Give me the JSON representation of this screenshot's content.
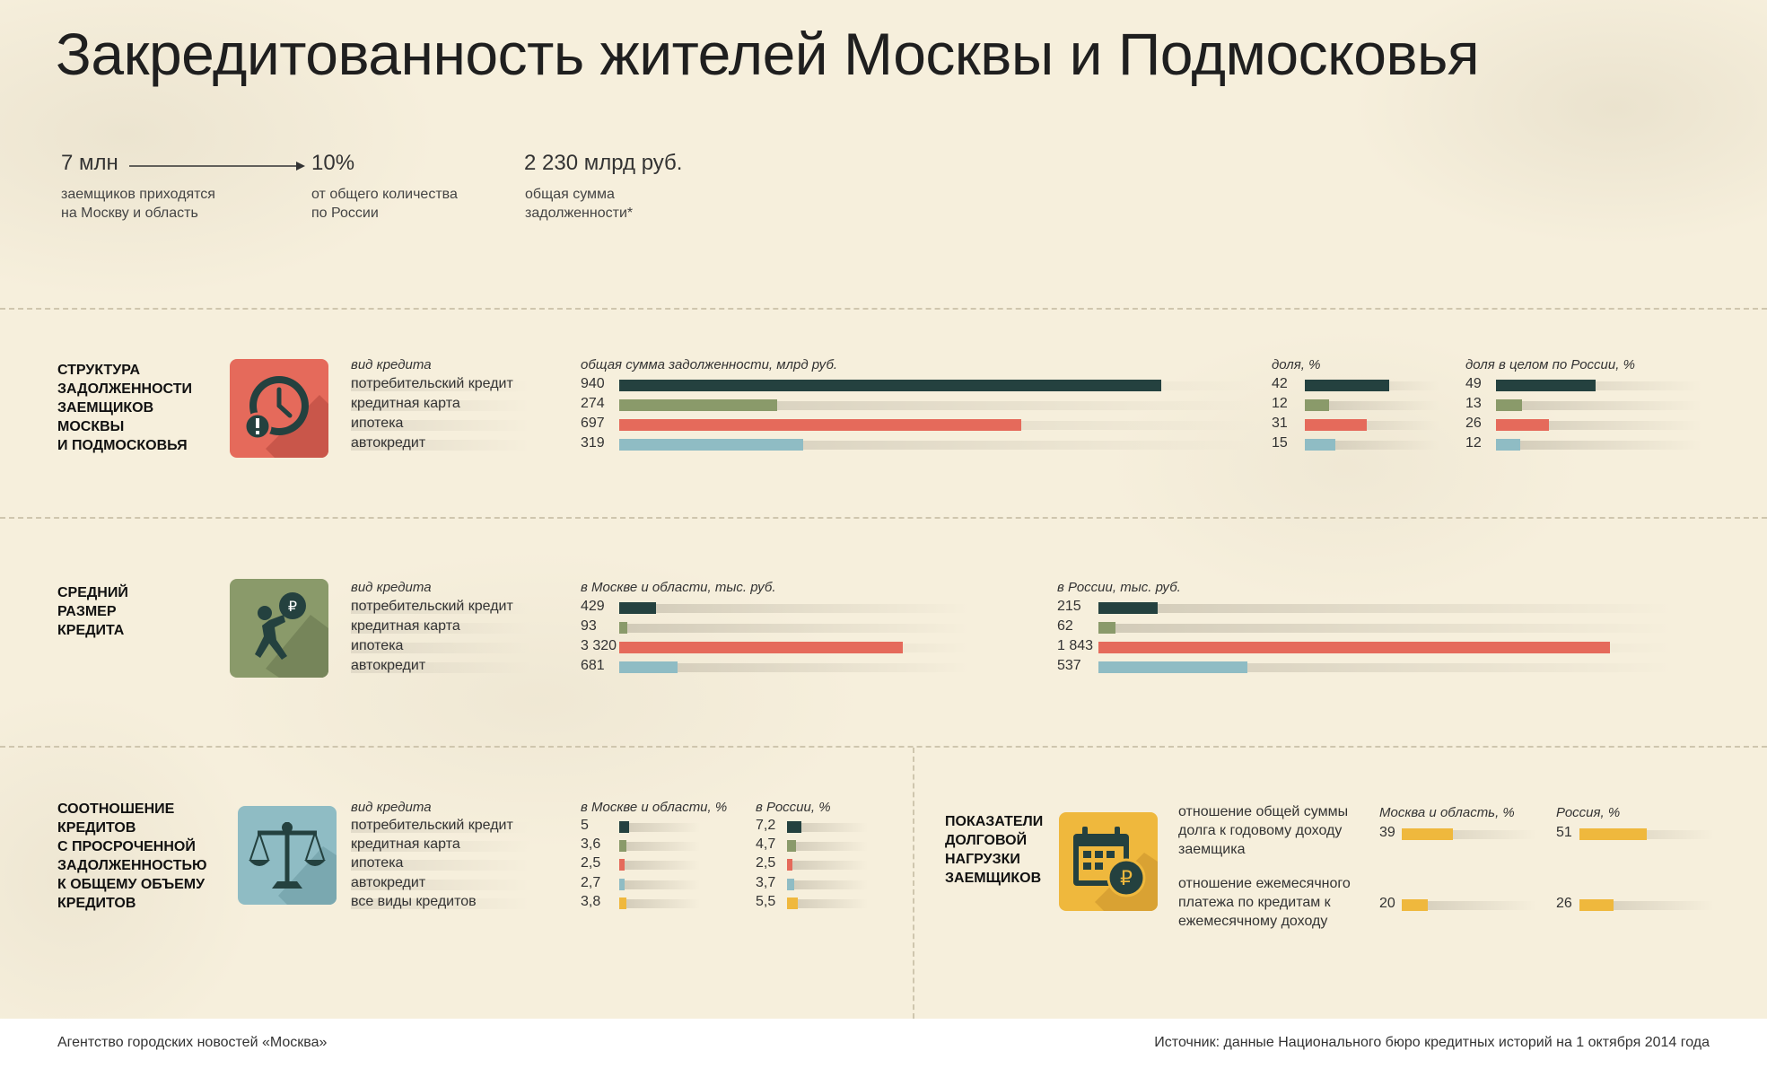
{
  "title": "Закредитованность жителей Москвы и Подмосковья",
  "colors": {
    "consumer": "#24413f",
    "card": "#8a9a6a",
    "mortgage": "#e56a5b",
    "auto": "#8fbcc4",
    "load": "#efb83d"
  },
  "summary": {
    "borrowers_value": "7 млн",
    "borrowers_desc": [
      "заемщиков приходятся",
      "на Москву и область"
    ],
    "share_value": "10%",
    "share_desc": [
      "от общего количества",
      "по России"
    ],
    "debt_value": "2 230 млрд руб.",
    "debt_desc": [
      "общая сумма",
      "задолженности*"
    ]
  },
  "sections": {
    "structure_title": [
      "СТРУКТУРА",
      "ЗАДОЛЖЕННОСТИ",
      "ЗАЕМЩИКОВ",
      "МОСКВЫ",
      "И ПОДМОСКОВЬЯ"
    ],
    "avg_title": [
      "СРЕДНИЙ",
      "РАЗМЕР",
      "КРЕДИТА"
    ],
    "overdue_title": [
      "СООТНОШЕНИЕ",
      "КРЕДИТОВ",
      "С ПРОСРОЧЕННОЙ",
      "ЗАДОЛЖЕННОСТЬЮ",
      "К ОБЩЕМУ ОБЪЕМУ",
      "КРЕДИТОВ"
    ],
    "load_title": [
      "ПОКАЗАТЕЛИ",
      "ДОЛГОВОЙ",
      "НАГРУЗКИ",
      "ЗАЕМЩИКОВ"
    ]
  },
  "icons": {
    "structure": "clock-warning-icon",
    "avg": "person-carrying-ruble-icon",
    "overdue": "scales-icon",
    "load": "calendar-ruble-icon"
  },
  "chart_data": [
    {
      "type": "bar",
      "id": "structure",
      "categories": [
        "потребительский кредит",
        "кредитная карта",
        "ипотека",
        "автокредит"
      ],
      "category_header": "вид кредита",
      "series": [
        {
          "name": "общая сумма задолженности, млрд руб.",
          "values": [
            940,
            274,
            697,
            319
          ],
          "labels": [
            "940",
            "274",
            "697",
            "319"
          ]
        },
        {
          "name": "доля, %",
          "values": [
            42,
            12,
            31,
            15
          ],
          "labels": [
            "42",
            "12",
            "31",
            "15"
          ]
        },
        {
          "name": "доля в целом по России, %",
          "values": [
            49,
            13,
            26,
            12
          ],
          "labels": [
            "49",
            "13",
            "26",
            "12"
          ]
        }
      ]
    },
    {
      "type": "bar",
      "id": "avg",
      "categories": [
        "потребительский кредит",
        "кредитная карта",
        "ипотека",
        "автокредит"
      ],
      "category_header": "вид кредита",
      "series": [
        {
          "name": "в Москве и области, тыс. руб.",
          "values": [
            429,
            93,
            3320,
            681
          ],
          "labels": [
            "429",
            "93",
            "3 320",
            "681"
          ]
        },
        {
          "name": "в России, тыс. руб.",
          "values": [
            215,
            62,
            1843,
            537
          ],
          "labels": [
            "215",
            "62",
            "1 843",
            "537"
          ]
        }
      ]
    },
    {
      "type": "bar",
      "id": "overdue",
      "categories": [
        "потребительский кредит",
        "кредитная карта",
        "ипотека",
        "автокредит",
        "все виды кредитов"
      ],
      "category_header": "вид кредита",
      "series": [
        {
          "name": "в Москве и области, %",
          "values": [
            5,
            3.6,
            2.5,
            2.7,
            3.8
          ],
          "labels": [
            "5",
            "3,6",
            "2,5",
            "2,7",
            "3,8"
          ]
        },
        {
          "name": "в России, %",
          "values": [
            7.2,
            4.7,
            2.5,
            3.7,
            5.5
          ],
          "labels": [
            "7,2",
            "4,7",
            "2,5",
            "3,7",
            "5,5"
          ]
        }
      ]
    },
    {
      "type": "bar",
      "id": "load",
      "categories": [
        "отношение общей суммы долга к годовому доходу заемщика",
        "отношение ежемесячного платежа по кредитам к ежемесячному доходу"
      ],
      "category_lines": [
        [
          "отношение общей суммы",
          "долга к годовому доходу",
          "заемщика"
        ],
        [
          "отношение ежемесячного",
          "платежа по кредитам к",
          "ежемесячному доходу"
        ]
      ],
      "series": [
        {
          "name": "Москва и область, %",
          "values": [
            39,
            20
          ],
          "labels": [
            "39",
            "20"
          ]
        },
        {
          "name": "Россия, %",
          "values": [
            51,
            26
          ],
          "labels": [
            "51",
            "26"
          ]
        }
      ]
    }
  ],
  "footer": {
    "left": "Агентство городских новостей «Москва»",
    "right": "Источник: данные Национального бюро кредитных историй на 1 октября 2014 года"
  }
}
